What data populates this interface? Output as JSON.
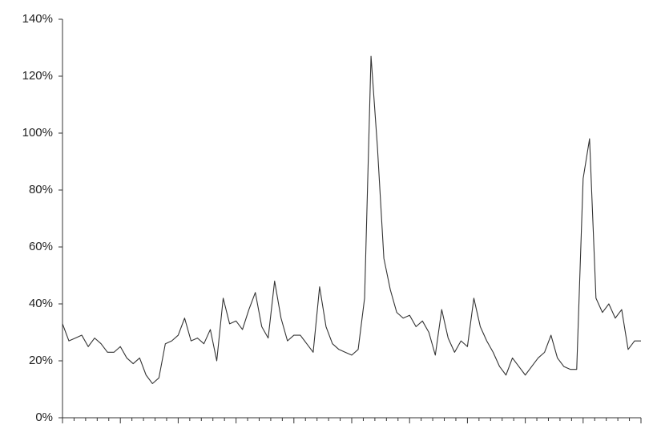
{
  "chart_data": {
    "type": "line",
    "values": [
      33,
      27,
      28,
      29,
      25,
      28,
      26,
      23,
      23,
      25,
      21,
      19,
      21,
      15,
      12,
      14,
      26,
      27,
      29,
      35,
      27,
      28,
      26,
      31,
      20,
      42,
      33,
      34,
      31,
      38,
      44,
      32,
      28,
      48,
      35,
      27,
      29,
      29,
      26,
      23,
      46,
      32,
      26,
      24,
      23,
      22,
      24,
      42,
      127,
      95,
      56,
      45,
      37,
      35,
      36,
      32,
      34,
      30,
      22,
      38,
      28,
      23,
      27,
      25,
      42,
      32,
      27,
      23,
      18,
      15,
      21,
      18,
      15,
      18,
      21,
      23,
      29,
      21,
      18,
      17,
      17,
      84,
      98,
      42,
      37,
      40,
      35,
      38,
      24,
      27,
      27
    ],
    "color": "#333333",
    "ylim": [
      0,
      140
    ],
    "yticks": [
      {
        "value": 0,
        "label": "0%"
      },
      {
        "value": 20,
        "label": "20%"
      },
      {
        "value": 40,
        "label": "40%"
      },
      {
        "value": 60,
        "label": "60%"
      },
      {
        "value": 80,
        "label": "80%"
      },
      {
        "value": 100,
        "label": "100%"
      },
      {
        "value": 120,
        "label": "120%"
      },
      {
        "value": 140,
        "label": "140%"
      }
    ]
  }
}
